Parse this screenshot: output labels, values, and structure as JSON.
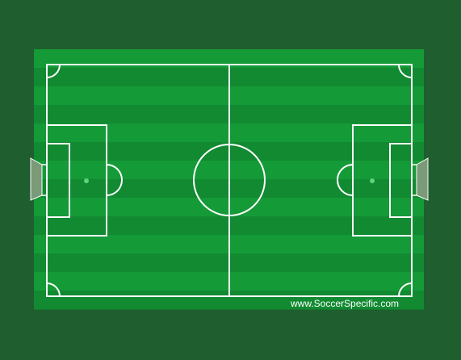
{
  "watermark": {
    "text": "www.SoccerSpecific.com"
  },
  "colors": {
    "background": "#1f5e2e",
    "stripe_light": "#159a38",
    "stripe_dark": "#118a31",
    "line": "#ffffff",
    "spot": "#5fd37a",
    "goal_net": "#7a9a78"
  },
  "pitch": {
    "stripe_count": 14
  }
}
